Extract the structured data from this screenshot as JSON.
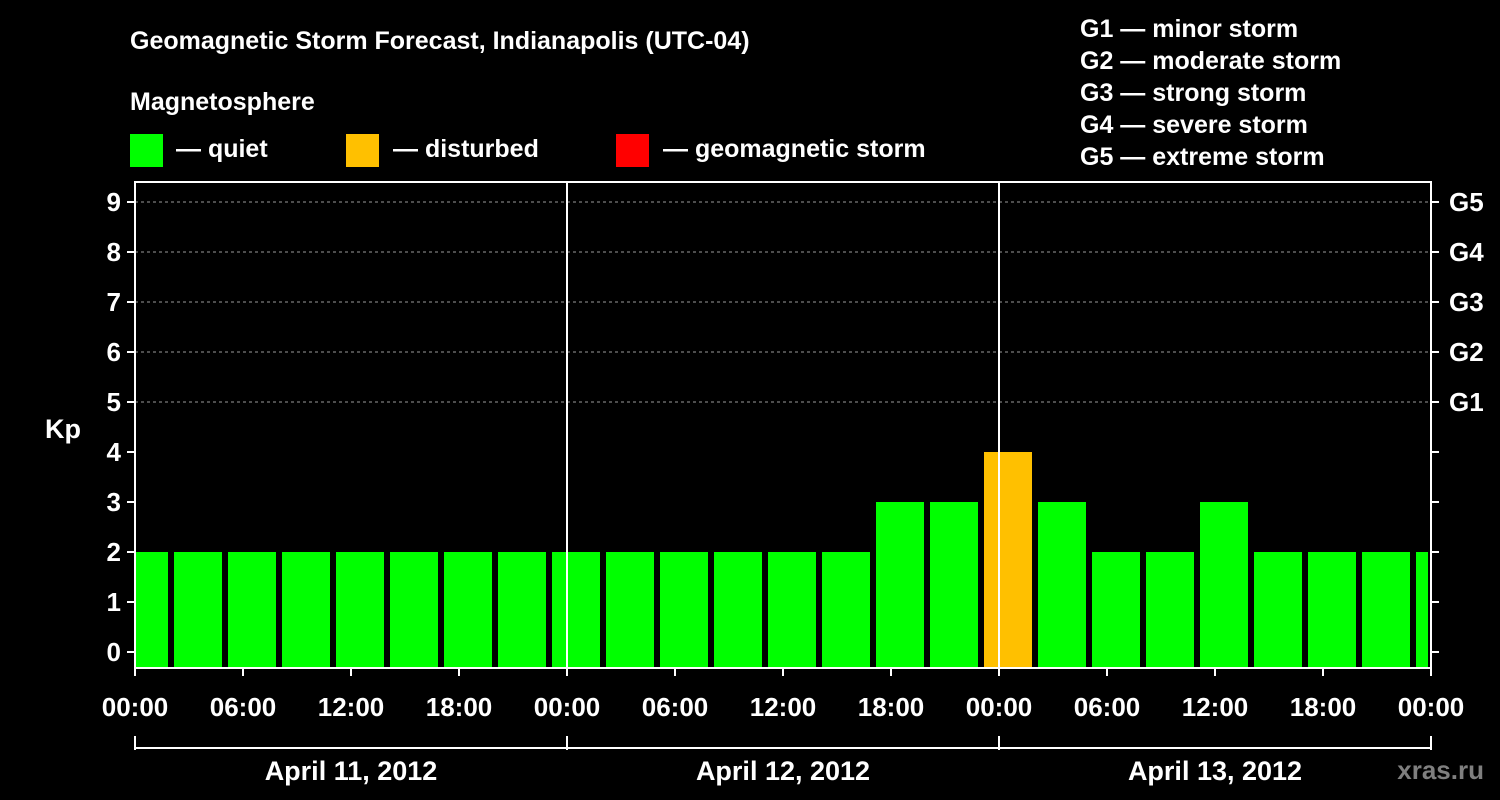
{
  "chart_data": {
    "type": "bar",
    "title": "Geomagnetic Storm Forecast, Indianapolis (UTC-04)",
    "legend_title": "Magnetosphere",
    "legend": [
      {
        "label": "— quiet",
        "color": "#00ff00"
      },
      {
        "label": "— disturbed",
        "color": "#ffc000"
      },
      {
        "label": "— geomagnetic storm",
        "color": "#ff0000"
      }
    ],
    "storm_scale": [
      "G1 — minor storm",
      "G2 — moderate storm",
      "G3 — strong storm",
      "G4 — severe storm",
      "G5 — extreme storm"
    ],
    "ylabel": "Kp",
    "ylim": [
      0,
      9
    ],
    "yticks": [
      "0",
      "1",
      "2",
      "3",
      "4",
      "5",
      "6",
      "7",
      "8",
      "9"
    ],
    "g_levels": [
      {
        "label": "G1",
        "kp": 5
      },
      {
        "label": "G2",
        "kp": 6
      },
      {
        "label": "G3",
        "kp": 7
      },
      {
        "label": "G4",
        "kp": 8
      },
      {
        "label": "G5",
        "kp": 9
      }
    ],
    "xlim_hours": [
      0,
      72
    ],
    "xticks": [
      "00:00",
      "06:00",
      "12:00",
      "18:00",
      "00:00",
      "06:00",
      "12:00",
      "18:00",
      "00:00",
      "06:00",
      "12:00",
      "18:00",
      "00:00"
    ],
    "days": [
      "April 11, 2012",
      "April 12, 2012",
      "April 13, 2012"
    ],
    "series": [
      {
        "start_hour": 0,
        "end_hour": 2,
        "kp": 2,
        "status": "quiet"
      },
      {
        "start_hour": 2,
        "end_hour": 5,
        "kp": 2,
        "status": "quiet"
      },
      {
        "start_hour": 5,
        "end_hour": 8,
        "kp": 2,
        "status": "quiet"
      },
      {
        "start_hour": 8,
        "end_hour": 11,
        "kp": 2,
        "status": "quiet"
      },
      {
        "start_hour": 11,
        "end_hour": 14,
        "kp": 2,
        "status": "quiet"
      },
      {
        "start_hour": 14,
        "end_hour": 17,
        "kp": 2,
        "status": "quiet"
      },
      {
        "start_hour": 17,
        "end_hour": 20,
        "kp": 2,
        "status": "quiet"
      },
      {
        "start_hour": 20,
        "end_hour": 23,
        "kp": 2,
        "status": "quiet"
      },
      {
        "start_hour": 23,
        "end_hour": 26,
        "kp": 2,
        "status": "quiet"
      },
      {
        "start_hour": 26,
        "end_hour": 29,
        "kp": 2,
        "status": "quiet"
      },
      {
        "start_hour": 29,
        "end_hour": 32,
        "kp": 2,
        "status": "quiet"
      },
      {
        "start_hour": 32,
        "end_hour": 35,
        "kp": 2,
        "status": "quiet"
      },
      {
        "start_hour": 35,
        "end_hour": 38,
        "kp": 2,
        "status": "quiet"
      },
      {
        "start_hour": 38,
        "end_hour": 41,
        "kp": 2,
        "status": "quiet"
      },
      {
        "start_hour": 41,
        "end_hour": 44,
        "kp": 3,
        "status": "quiet"
      },
      {
        "start_hour": 44,
        "end_hour": 47,
        "kp": 3,
        "status": "quiet"
      },
      {
        "start_hour": 47,
        "end_hour": 50,
        "kp": 4,
        "status": "disturbed"
      },
      {
        "start_hour": 50,
        "end_hour": 53,
        "kp": 3,
        "status": "quiet"
      },
      {
        "start_hour": 53,
        "end_hour": 56,
        "kp": 2,
        "status": "quiet"
      },
      {
        "start_hour": 56,
        "end_hour": 59,
        "kp": 2,
        "status": "quiet"
      },
      {
        "start_hour": 59,
        "end_hour": 62,
        "kp": 3,
        "status": "quiet"
      },
      {
        "start_hour": 62,
        "end_hour": 65,
        "kp": 2,
        "status": "quiet"
      },
      {
        "start_hour": 65,
        "end_hour": 68,
        "kp": 2,
        "status": "quiet"
      },
      {
        "start_hour": 68,
        "end_hour": 71,
        "kp": 2,
        "status": "quiet"
      },
      {
        "start_hour": 71,
        "end_hour": 72,
        "kp": 2,
        "status": "quiet"
      }
    ],
    "colors": {
      "quiet": "#00ff00",
      "disturbed": "#ffc000",
      "storm": "#ff0000"
    },
    "grid": true,
    "watermark": "xras.ru"
  }
}
